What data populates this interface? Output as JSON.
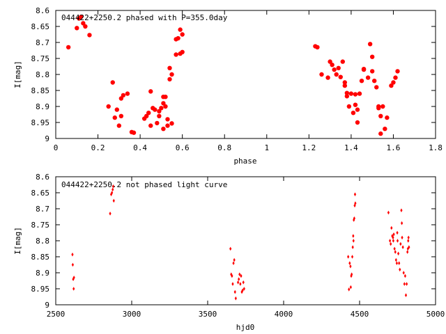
{
  "colors": {
    "points": "#ff0000",
    "axes": "#000000",
    "background": "#ffffff"
  },
  "chart_data": [
    {
      "type": "scatter",
      "title": "044422+2250.2 phased with P=355.0day",
      "xlabel": "phase",
      "ylabel": "I[mag]",
      "xlim": [
        0,
        1.8
      ],
      "ylim": [
        9,
        8.6
      ],
      "y_inverted": true,
      "grid": false,
      "legend": "none",
      "marker": "filled circle",
      "xticks": [
        {
          "value": 0,
          "label": "0"
        },
        {
          "value": 0.2,
          "label": "0.2"
        },
        {
          "value": 0.4,
          "label": "0.4"
        },
        {
          "value": 0.6,
          "label": "0.6"
        },
        {
          "value": 0.8,
          "label": "0.8"
        },
        {
          "value": 1.0,
          "label": "1"
        },
        {
          "value": 1.2,
          "label": "1.2"
        },
        {
          "value": 1.4,
          "label": "1.4"
        },
        {
          "value": 1.6,
          "label": "1.6"
        },
        {
          "value": 1.8,
          "label": "1.8"
        }
      ],
      "yticks": [
        {
          "value": 8.6,
          "label": "8.6"
        },
        {
          "value": 8.65,
          "label": "8.65"
        },
        {
          "value": 8.7,
          "label": "8.7"
        },
        {
          "value": 8.75,
          "label": "8.75"
        },
        {
          "value": 8.8,
          "label": "8.8"
        },
        {
          "value": 8.85,
          "label": "8.85"
        },
        {
          "value": 8.9,
          "label": "8.9"
        },
        {
          "value": 8.95,
          "label": "8.95"
        },
        {
          "value": 9,
          "label": "9"
        }
      ],
      "points": [
        [
          0.06,
          8.715
        ],
        [
          0.1,
          8.655
        ],
        [
          0.11,
          8.625
        ],
        [
          0.12,
          8.62
        ],
        [
          0.13,
          8.64
        ],
        [
          0.14,
          8.65
        ],
        [
          0.16,
          8.677
        ],
        [
          0.25,
          8.9
        ],
        [
          0.27,
          8.825
        ],
        [
          0.28,
          8.935
        ],
        [
          0.29,
          8.91
        ],
        [
          0.3,
          8.96
        ],
        [
          0.31,
          8.875
        ],
        [
          0.31,
          8.93
        ],
        [
          0.32,
          8.865
        ],
        [
          0.34,
          8.86
        ],
        [
          0.36,
          8.98
        ],
        [
          0.37,
          8.982
        ],
        [
          0.42,
          8.938
        ],
        [
          0.43,
          8.93
        ],
        [
          0.44,
          8.92
        ],
        [
          0.45,
          8.853
        ],
        [
          0.45,
          8.96
        ],
        [
          0.46,
          8.905
        ],
        [
          0.47,
          8.91
        ],
        [
          0.48,
          8.952
        ],
        [
          0.49,
          8.915
        ],
        [
          0.49,
          8.93
        ],
        [
          0.5,
          8.905
        ],
        [
          0.51,
          8.87
        ],
        [
          0.51,
          8.89
        ],
        [
          0.51,
          8.97
        ],
        [
          0.52,
          8.9
        ],
        [
          0.52,
          8.87
        ],
        [
          0.53,
          8.94
        ],
        [
          0.53,
          8.96
        ],
        [
          0.54,
          8.78
        ],
        [
          0.54,
          8.815
        ],
        [
          0.55,
          8.953
        ],
        [
          0.55,
          8.8
        ],
        [
          0.57,
          8.738
        ],
        [
          0.57,
          8.69
        ],
        [
          0.58,
          8.687
        ],
        [
          0.59,
          8.735
        ],
        [
          0.59,
          8.66
        ],
        [
          0.6,
          8.73
        ],
        [
          0.6,
          8.675
        ],
        [
          1.23,
          8.712
        ],
        [
          1.24,
          8.715
        ],
        [
          1.26,
          8.8
        ],
        [
          1.29,
          8.81
        ],
        [
          1.3,
          8.76
        ],
        [
          1.31,
          8.77
        ],
        [
          1.32,
          8.785
        ],
        [
          1.33,
          8.8
        ],
        [
          1.34,
          8.78
        ],
        [
          1.35,
          8.808
        ],
        [
          1.36,
          8.76
        ],
        [
          1.37,
          8.825
        ],
        [
          1.37,
          8.835
        ],
        [
          1.38,
          8.858
        ],
        [
          1.38,
          8.868
        ],
        [
          1.39,
          8.9
        ],
        [
          1.4,
          8.86
        ],
        [
          1.41,
          8.92
        ],
        [
          1.42,
          8.895
        ],
        [
          1.42,
          8.862
        ],
        [
          1.43,
          8.95
        ],
        [
          1.43,
          8.91
        ],
        [
          1.44,
          8.86
        ],
        [
          1.45,
          8.82
        ],
        [
          1.46,
          8.785
        ],
        [
          1.46,
          8.783
        ],
        [
          1.48,
          8.81
        ],
        [
          1.49,
          8.705
        ],
        [
          1.5,
          8.745
        ],
        [
          1.5,
          8.79
        ],
        [
          1.51,
          8.82
        ],
        [
          1.52,
          8.84
        ],
        [
          1.53,
          8.905
        ],
        [
          1.53,
          8.9
        ],
        [
          1.54,
          8.985
        ],
        [
          1.54,
          8.93
        ],
        [
          1.55,
          8.9
        ],
        [
          1.56,
          8.97
        ],
        [
          1.57,
          8.935
        ],
        [
          1.59,
          8.835
        ],
        [
          1.6,
          8.825
        ],
        [
          1.61,
          8.81
        ],
        [
          1.62,
          8.79
        ]
      ]
    },
    {
      "type": "scatter",
      "title": "044422+2250.2 not phased light curve",
      "xlabel": "hjd0",
      "ylabel": "I[mag]",
      "xlim": [
        2500,
        5000
      ],
      "ylim": [
        9,
        8.6
      ],
      "y_inverted": true,
      "grid": false,
      "legend": "none",
      "marker": "small filled diamond",
      "xticks": [
        {
          "value": 2500,
          "label": "2500"
        },
        {
          "value": 3000,
          "label": "3000"
        },
        {
          "value": 3500,
          "label": "3500"
        },
        {
          "value": 4000,
          "label": "4000"
        },
        {
          "value": 4500,
          "label": "4500"
        },
        {
          "value": 5000,
          "label": "5000"
        }
      ],
      "yticks": [
        {
          "value": 8.6,
          "label": "8.6"
        },
        {
          "value": 8.65,
          "label": "8.65"
        },
        {
          "value": 8.7,
          "label": "8.7"
        },
        {
          "value": 8.75,
          "label": "8.75"
        },
        {
          "value": 8.8,
          "label": "8.8"
        },
        {
          "value": 8.85,
          "label": "8.85"
        },
        {
          "value": 8.9,
          "label": "8.9"
        },
        {
          "value": 8.95,
          "label": "8.95"
        },
        {
          "value": 9,
          "label": "9"
        }
      ],
      "points": [
        [
          2610,
          8.843
        ],
        [
          2612,
          8.875
        ],
        [
          2615,
          8.92
        ],
        [
          2618,
          8.95
        ],
        [
          2620,
          8.915
        ],
        [
          2858,
          8.715
        ],
        [
          2865,
          8.655
        ],
        [
          2870,
          8.65
        ],
        [
          2875,
          8.64
        ],
        [
          2878,
          8.63
        ],
        [
          2882,
          8.675
        ],
        [
          3650,
          8.825
        ],
        [
          3655,
          8.905
        ],
        [
          3660,
          8.91
        ],
        [
          3665,
          8.935
        ],
        [
          3670,
          8.87
        ],
        [
          3675,
          8.86
        ],
        [
          3680,
          8.96
        ],
        [
          3685,
          8.98
        ],
        [
          3700,
          8.93
        ],
        [
          3705,
          8.92
        ],
        [
          3710,
          8.905
        ],
        [
          3715,
          8.935
        ],
        [
          3720,
          8.91
        ],
        [
          3725,
          8.96
        ],
        [
          3730,
          8.955
        ],
        [
          3735,
          8.93
        ],
        [
          3740,
          8.95
        ],
        [
          4425,
          8.85
        ],
        [
          4430,
          8.952
        ],
        [
          4435,
          8.87
        ],
        [
          4440,
          8.88
        ],
        [
          4442,
          8.945
        ],
        [
          4445,
          8.91
        ],
        [
          4448,
          8.905
        ],
        [
          4452,
          8.85
        ],
        [
          4455,
          8.82
        ],
        [
          4458,
          8.785
        ],
        [
          4460,
          8.8
        ],
        [
          4462,
          8.735
        ],
        [
          4465,
          8.73
        ],
        [
          4468,
          8.69
        ],
        [
          4470,
          8.655
        ],
        [
          4472,
          8.683
        ],
        [
          4690,
          8.712
        ],
        [
          4700,
          8.8
        ],
        [
          4705,
          8.81
        ],
        [
          4710,
          8.76
        ],
        [
          4715,
          8.785
        ],
        [
          4720,
          8.79
        ],
        [
          4722,
          8.8
        ],
        [
          4725,
          8.78
        ],
        [
          4730,
          8.825
        ],
        [
          4735,
          8.835
        ],
        [
          4740,
          8.86
        ],
        [
          4745,
          8.87
        ],
        [
          4748,
          8.775
        ],
        [
          4750,
          8.8
        ],
        [
          4755,
          8.84
        ],
        [
          4760,
          8.87
        ],
        [
          4765,
          8.89
        ],
        [
          4770,
          8.81
        ],
        [
          4775,
          8.705
        ],
        [
          4778,
          8.745
        ],
        [
          4780,
          8.79
        ],
        [
          4785,
          8.82
        ],
        [
          4790,
          8.9
        ],
        [
          4795,
          8.935
        ],
        [
          4800,
          8.91
        ],
        [
          4805,
          8.97
        ],
        [
          4810,
          8.935
        ],
        [
          4815,
          8.835
        ],
        [
          4818,
          8.825
        ],
        [
          4820,
          8.8
        ],
        [
          4822,
          8.79
        ],
        [
          4825,
          8.82
        ]
      ]
    }
  ]
}
